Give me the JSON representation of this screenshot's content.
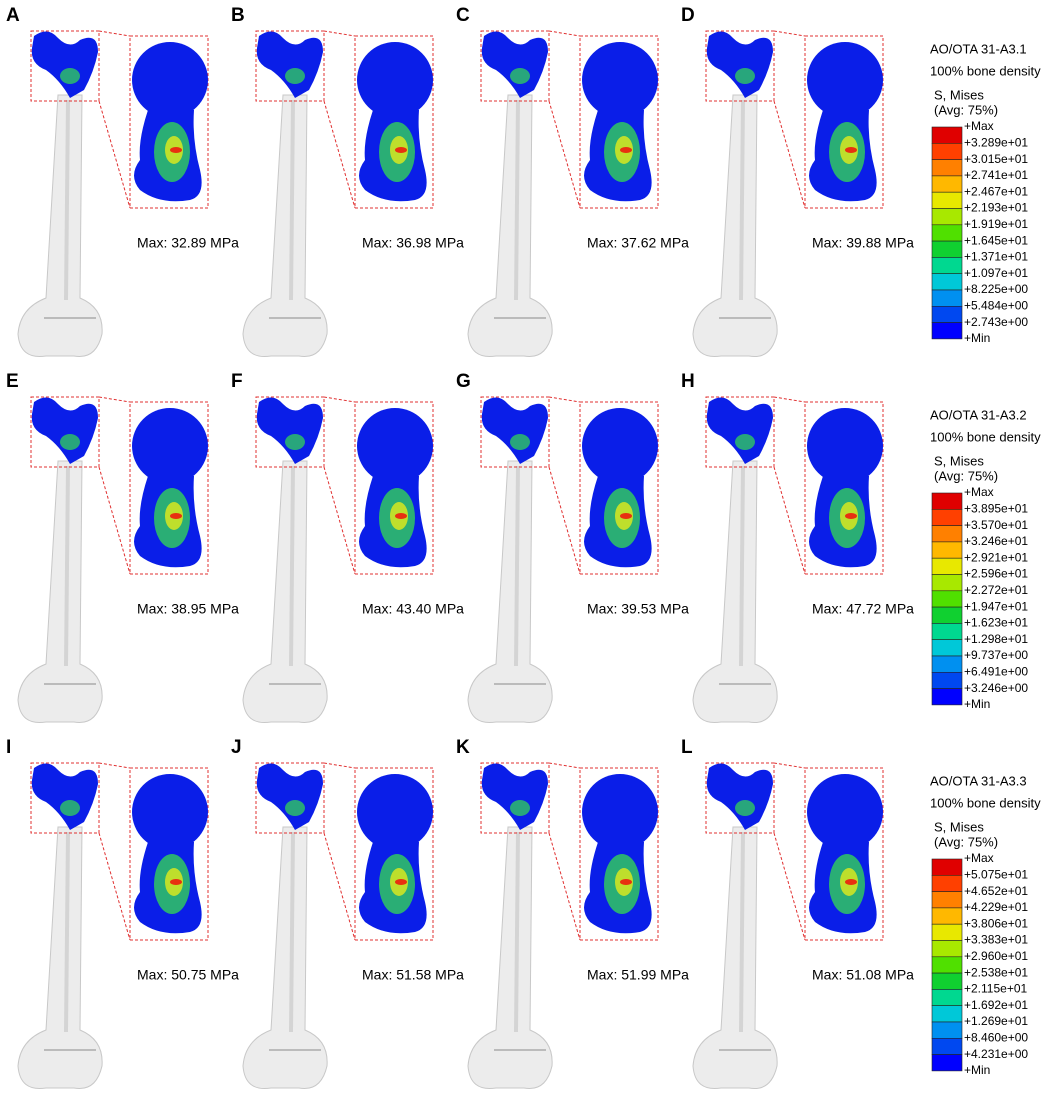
{
  "panels": [
    {
      "letter": "A",
      "max_label": "Max: 32.89 MPa"
    },
    {
      "letter": "B",
      "max_label": "Max: 36.98 MPa"
    },
    {
      "letter": "C",
      "max_label": "Max: 37.62 MPa"
    },
    {
      "letter": "D",
      "max_label": "Max: 39.88 MPa"
    },
    {
      "letter": "E",
      "max_label": "Max: 38.95 MPa"
    },
    {
      "letter": "F",
      "max_label": "Max: 43.40 MPa"
    },
    {
      "letter": "G",
      "max_label": "Max: 39.53 MPa"
    },
    {
      "letter": "H",
      "max_label": "Max: 47.72 MPa"
    },
    {
      "letter": "I",
      "max_label": "Max: 50.75 MPa"
    },
    {
      "letter": "J",
      "max_label": "Max: 51.58 MPa"
    },
    {
      "letter": "K",
      "max_label": "Max: 51.99 MPa"
    },
    {
      "letter": "L",
      "max_label": "Max: 51.08 MPa"
    }
  ],
  "legends": [
    {
      "title": "AO/OTA 31-A3.1",
      "subtitle": "100% bone density",
      "variable": "S, Mises",
      "averaging": "(Avg: 75%)",
      "entries": [
        "+Max",
        "+3.289e+01",
        "+3.015e+01",
        "+2.741e+01",
        "+2.467e+01",
        "+2.193e+01",
        "+1.919e+01",
        "+1.645e+01",
        "+1.371e+01",
        "+1.097e+01",
        "+8.225e+00",
        "+5.484e+00",
        "+2.743e+00",
        "+Min"
      ]
    },
    {
      "title": "AO/OTA 31-A3.2",
      "subtitle": "100% bone density",
      "variable": "S, Mises",
      "averaging": "(Avg: 75%)",
      "entries": [
        "+Max",
        "+3.895e+01",
        "+3.570e+01",
        "+3.246e+01",
        "+2.921e+01",
        "+2.596e+01",
        "+2.272e+01",
        "+1.947e+01",
        "+1.623e+01",
        "+1.298e+01",
        "+9.737e+00",
        "+6.491e+00",
        "+3.246e+00",
        "+Min"
      ]
    },
    {
      "title": "AO/OTA 31-A3.3",
      "subtitle": "100% bone density",
      "variable": "S, Mises",
      "averaging": "(Avg: 75%)",
      "entries": [
        "+Max",
        "+5.075e+01",
        "+4.652e+01",
        "+4.229e+01",
        "+3.806e+01",
        "+3.383e+01",
        "+2.960e+01",
        "+2.538e+01",
        "+2.115e+01",
        "+1.692e+01",
        "+1.269e+01",
        "+8.460e+00",
        "+4.231e+00",
        "+Min"
      ]
    }
  ]
}
